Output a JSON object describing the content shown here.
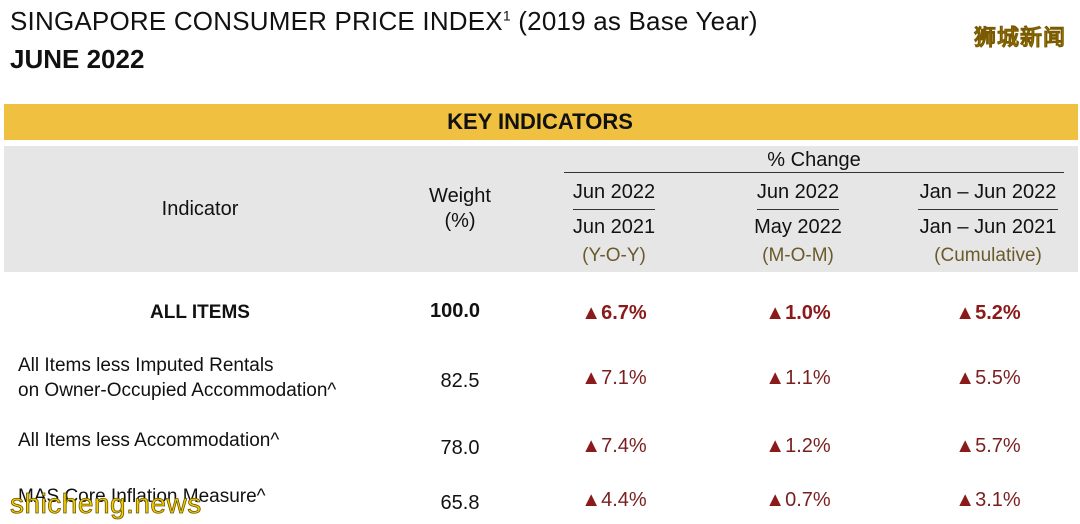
{
  "header": {
    "title": "SINGAPORE CONSUMER PRICE INDEX",
    "title_sup": "1",
    "title_suffix": "(2019 as Base Year)",
    "subtitle": "JUNE 2022"
  },
  "watermarks": {
    "top_right": "狮城新闻",
    "bottom_left": "shicheng.news"
  },
  "table": {
    "section_title": "KEY INDICATORS",
    "colors": {
      "band": "#f0c040",
      "header_bg": "#e6e6e6",
      "arrow": "#8b1a1a"
    },
    "headers": {
      "indicator": "Indicator",
      "weight_line1": "Weight",
      "weight_line2": "(%)",
      "change": "% Change",
      "cols": [
        {
          "top": "Jun 2022",
          "bottom": "Jun 2021",
          "note": "(Y-O-Y)"
        },
        {
          "top": "Jun 2022",
          "bottom": "May 2022",
          "note": "(M-O-M)"
        },
        {
          "top": "Jan – Jun 2022",
          "bottom": "Jan – Jun 2021",
          "note": "(Cumulative)"
        }
      ]
    },
    "arrow_glyph": "▲",
    "rows": [
      {
        "label": "ALL ITEMS",
        "weight": "100.0",
        "yoy": "6.7%",
        "mom": "1.0%",
        "cum": "5.2%"
      },
      {
        "label_line1": "All Items less Imputed Rentals",
        "label_line2": "on Owner-Occupied Accommodation^",
        "weight": "82.5",
        "yoy": "7.1%",
        "mom": "1.1%",
        "cum": "5.5%"
      },
      {
        "label": "All Items less Accommodation^",
        "weight": "78.0",
        "yoy": "7.4%",
        "mom": "1.2%",
        "cum": "5.7%"
      },
      {
        "label": "MAS Core Inflation Measure^",
        "weight": "65.8",
        "yoy": "4.4%",
        "mom": "0.7%",
        "cum": "3.1%"
      }
    ]
  }
}
